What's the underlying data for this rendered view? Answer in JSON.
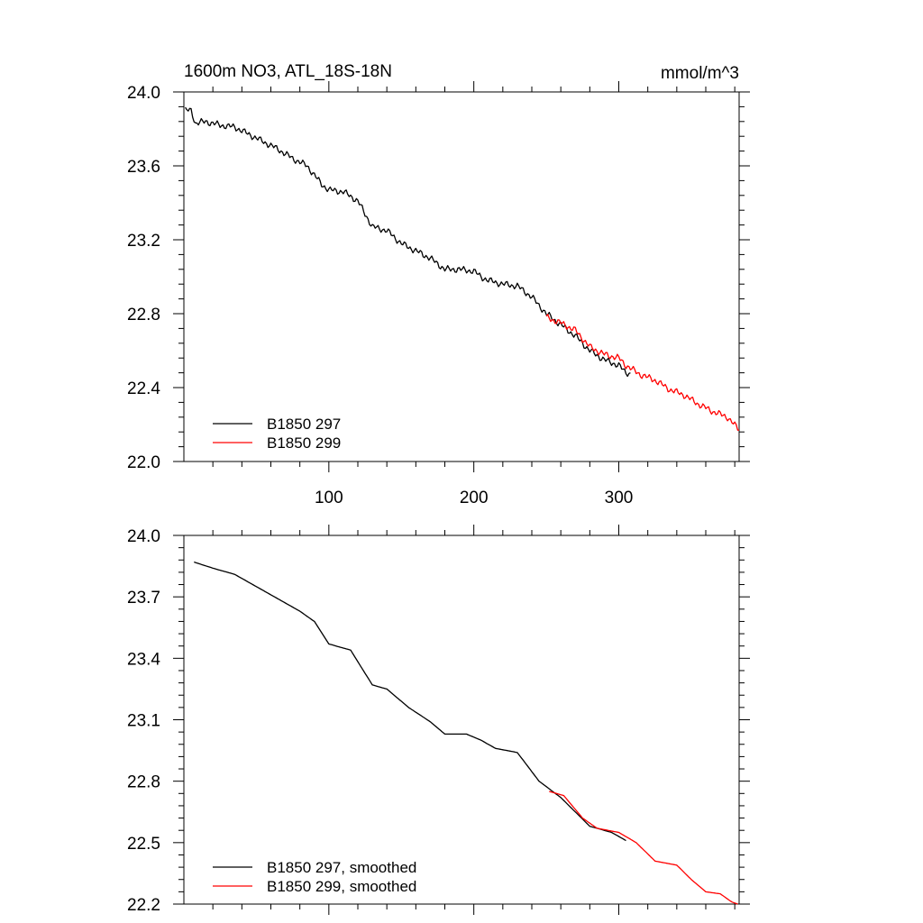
{
  "chart_data": [
    {
      "type": "line",
      "title": "1600m NO3, ATL_18S-18N",
      "units": "mmol/m^3",
      "xlim": [
        0,
        383
      ],
      "ylim": [
        22.0,
        24.0
      ],
      "x_ticks": [
        100,
        200,
        300
      ],
      "x_tick_labels": [
        "100",
        "200",
        "300"
      ],
      "y_ticks": [
        22.0,
        22.4,
        22.8,
        23.2,
        23.6,
        24.0
      ],
      "y_tick_labels": [
        "22.0",
        "22.4",
        "22.8",
        "23.2",
        "23.6",
        "24.0"
      ],
      "legend_position": "bottom-left",
      "series": [
        {
          "name": "B1850 297",
          "color": "#000000",
          "points": [
            [
              1,
              23.9
            ],
            [
              5,
              23.9
            ],
            [
              8,
              23.83
            ],
            [
              15,
              23.84
            ],
            [
              25,
              23.82
            ],
            [
              35,
              23.81
            ],
            [
              45,
              23.77
            ],
            [
              55,
              23.73
            ],
            [
              65,
              23.69
            ],
            [
              75,
              23.64
            ],
            [
              85,
              23.6
            ],
            [
              90,
              23.55
            ],
            [
              95,
              23.5
            ],
            [
              100,
              23.47
            ],
            [
              110,
              23.46
            ],
            [
              120,
              23.41
            ],
            [
              125,
              23.34
            ],
            [
              130,
              23.27
            ],
            [
              140,
              23.25
            ],
            [
              150,
              23.18
            ],
            [
              160,
              23.14
            ],
            [
              170,
              23.1
            ],
            [
              180,
              23.04
            ],
            [
              190,
              23.04
            ],
            [
              200,
              23.03
            ],
            [
              205,
              23.0
            ],
            [
              210,
              22.98
            ],
            [
              220,
              22.96
            ],
            [
              230,
              22.95
            ],
            [
              240,
              22.89
            ],
            [
              250,
              22.8
            ],
            [
              260,
              22.74
            ],
            [
              270,
              22.68
            ],
            [
              280,
              22.6
            ],
            [
              290,
              22.55
            ],
            [
              300,
              22.52
            ],
            [
              305,
              22.48
            ],
            [
              308,
              22.48
            ]
          ]
        },
        {
          "name": "B1850 299",
          "color": "#ff0000",
          "points": [
            [
              250,
              22.78
            ],
            [
              260,
              22.75
            ],
            [
              270,
              22.71
            ],
            [
              280,
              22.62
            ],
            [
              290,
              22.58
            ],
            [
              300,
              22.56
            ],
            [
              305,
              22.52
            ],
            [
              315,
              22.47
            ],
            [
              325,
              22.44
            ],
            [
              335,
              22.39
            ],
            [
              345,
              22.36
            ],
            [
              355,
              22.31
            ],
            [
              365,
              22.27
            ],
            [
              375,
              22.24
            ],
            [
              383,
              22.17
            ]
          ]
        }
      ]
    },
    {
      "type": "line",
      "xlim": [
        0,
        383
      ],
      "ylim": [
        22.2,
        24.0
      ],
      "x_ticks": [
        100,
        200,
        300
      ],
      "y_ticks": [
        22.2,
        22.5,
        22.8,
        23.1,
        23.4,
        23.7,
        24.0
      ],
      "y_tick_labels": [
        "22.2",
        "22.5",
        "22.8",
        "23.1",
        "23.4",
        "23.7",
        "24.0"
      ],
      "legend_position": "bottom-left",
      "series": [
        {
          "name": "B1850 297, smoothed",
          "color": "#000000",
          "points": [
            [
              7,
              23.87
            ],
            [
              20,
              23.84
            ],
            [
              35,
              23.81
            ],
            [
              50,
              23.75
            ],
            [
              65,
              23.69
            ],
            [
              80,
              23.63
            ],
            [
              90,
              23.58
            ],
            [
              100,
              23.47
            ],
            [
              115,
              23.44
            ],
            [
              130,
              23.27
            ],
            [
              140,
              23.25
            ],
            [
              155,
              23.16
            ],
            [
              170,
              23.09
            ],
            [
              180,
              23.03
            ],
            [
              195,
              23.03
            ],
            [
              205,
              23.0
            ],
            [
              215,
              22.96
            ],
            [
              230,
              22.94
            ],
            [
              245,
              22.8
            ],
            [
              260,
              22.72
            ],
            [
              280,
              22.58
            ],
            [
              295,
              22.55
            ],
            [
              305,
              22.51
            ]
          ]
        },
        {
          "name": "B1850 299, smoothed",
          "color": "#ff0000",
          "points": [
            [
              252,
              22.75
            ],
            [
              262,
              22.73
            ],
            [
              275,
              22.62
            ],
            [
              285,
              22.57
            ],
            [
              300,
              22.55
            ],
            [
              312,
              22.5
            ],
            [
              325,
              22.41
            ],
            [
              340,
              22.39
            ],
            [
              350,
              22.32
            ],
            [
              360,
              22.26
            ],
            [
              370,
              22.25
            ],
            [
              378,
              22.21
            ],
            [
              382,
              22.2
            ]
          ]
        }
      ]
    }
  ]
}
